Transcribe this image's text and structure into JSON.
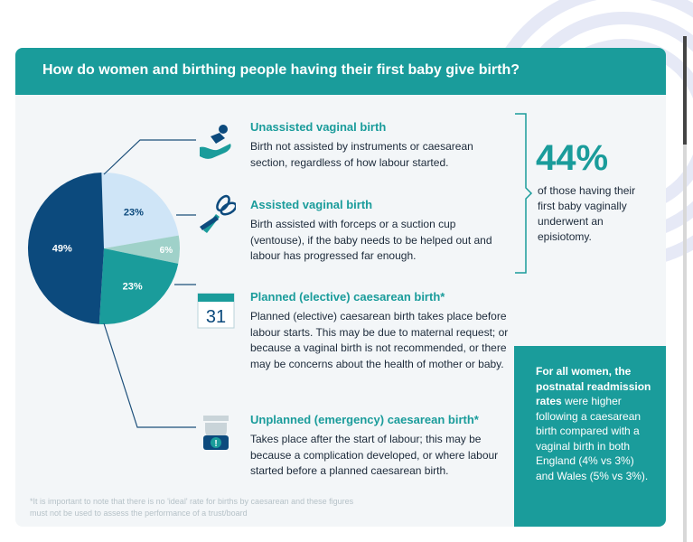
{
  "header": {
    "title": "How do women and birthing people having their first baby give birth?"
  },
  "chart_data": {
    "type": "pie",
    "title": "",
    "slices": [
      {
        "label": "Unassisted vaginal birth",
        "value": 49,
        "display": "49%",
        "color": "#0c4a7d"
      },
      {
        "label": "Assisted vaginal birth",
        "value": 23,
        "display": "23%",
        "color": "#cfe5f7"
      },
      {
        "label": "Planned (elective) caesarean birth*",
        "value": 6,
        "display": "6%",
        "color": "#9fd1c9"
      },
      {
        "label": "Unplanned (emergency) caesarean birth*",
        "value": 23,
        "display": "23%",
        "color": "#1a9c9b"
      }
    ]
  },
  "sections": [
    {
      "icon": "baby-in-hand-icon",
      "title": "Unassisted vaginal birth",
      "desc": "Birth not assisted by instruments or caesarean section, regardless of how labour started."
    },
    {
      "icon": "forceps-icon",
      "title": "Assisted vaginal birth",
      "desc": "Birth assisted with forceps or a suction cup (ventouse), if the baby needs to be helped out and labour has progressed far enough."
    },
    {
      "icon": "calendar-icon",
      "calendar_day": "31",
      "title": "Planned (elective) caesarean birth*",
      "desc": "Planned (elective) caesarean birth takes place before labour starts. This may be due to maternal request; or because a vaginal birth is not recommended, or there may be concerns about the health of mother or baby."
    },
    {
      "icon": "emergency-light-icon",
      "title": "Unplanned (emergency) caesarean birth*",
      "desc": "Takes place after the start of labour; this may be because a complication developed, or where labour started before a planned caesarean birth."
    }
  ],
  "stat": {
    "value": "44%",
    "desc": "of those having their first baby vaginally underwent an episiotomy."
  },
  "teal_box": {
    "bold": "For all women, the postnatal readmission rates",
    "rest": "were higher following a caesarean birth compared with a vaginal birth in both England (4% vs 3%) and Wales (5% vs 3%)."
  },
  "footnote": "*It is important to note that there is no 'ideal' rate for births by caesarean and these figures must not be used to assess the performance of a trust/board",
  "colors": {
    "teal": "#1a9c9b",
    "navy": "#0c4a7d",
    "text": "#1c2a3a"
  }
}
